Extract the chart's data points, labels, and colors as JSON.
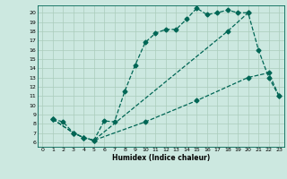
{
  "title": "",
  "xlabel": "Humidex (Indice chaleur)",
  "bg_color": "#cce8e0",
  "grid_color": "#aaccbb",
  "line_color": "#006655",
  "xlim": [
    -0.5,
    23.5
  ],
  "ylim": [
    5.5,
    20.8
  ],
  "xticks": [
    0,
    1,
    2,
    3,
    4,
    5,
    6,
    7,
    8,
    9,
    10,
    11,
    12,
    13,
    14,
    15,
    16,
    17,
    18,
    19,
    20,
    21,
    22,
    23
  ],
  "yticks": [
    6,
    7,
    8,
    9,
    10,
    11,
    12,
    13,
    14,
    15,
    16,
    17,
    18,
    19,
    20
  ],
  "line1_x": [
    1,
    2,
    3,
    4,
    5,
    6,
    7,
    8,
    9,
    10,
    11,
    12,
    13,
    14,
    15,
    16,
    17,
    18,
    19,
    20
  ],
  "line1_y": [
    8.5,
    8.2,
    7.0,
    6.5,
    6.2,
    8.3,
    8.2,
    11.5,
    14.3,
    16.8,
    17.8,
    18.2,
    18.2,
    19.3,
    20.5,
    19.8,
    20.0,
    20.3,
    20.0,
    20.0
  ],
  "line2_x": [
    1,
    3,
    4,
    5,
    18,
    20,
    21,
    22,
    23
  ],
  "line2_y": [
    8.5,
    7.0,
    6.5,
    6.2,
    18.0,
    20.0,
    16.0,
    13.0,
    11.0
  ],
  "line3_x": [
    1,
    3,
    4,
    5,
    10,
    15,
    20,
    22,
    23
  ],
  "line3_y": [
    8.5,
    7.0,
    6.5,
    6.2,
    8.2,
    10.5,
    13.0,
    13.5,
    11.0
  ],
  "markersize": 2.5,
  "linewidth": 0.9
}
